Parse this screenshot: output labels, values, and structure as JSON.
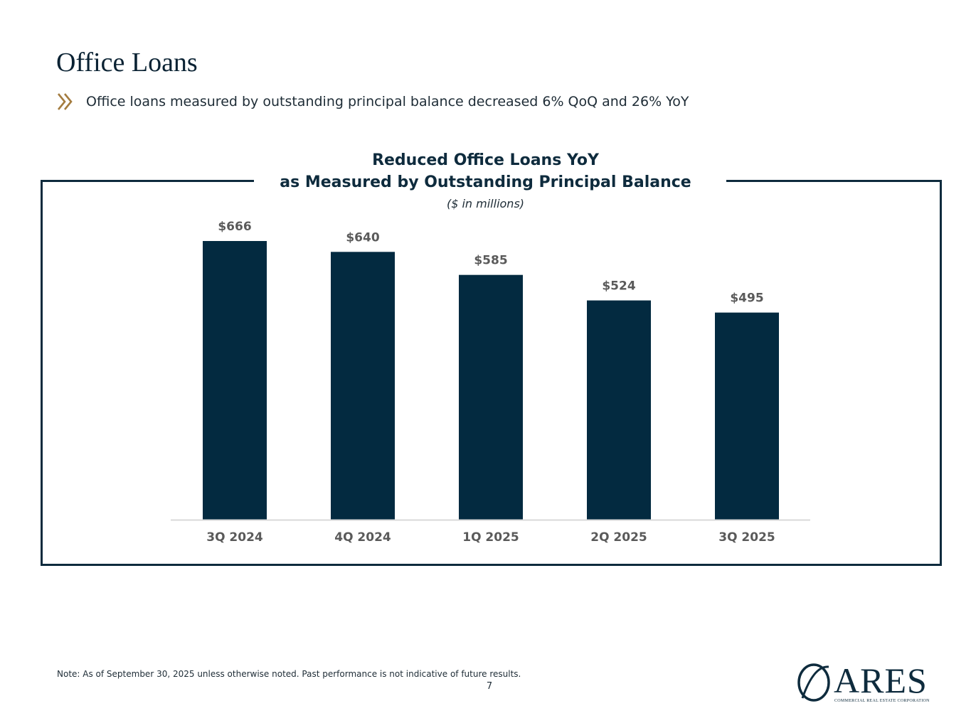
{
  "page": {
    "title": "Office Loans",
    "bullet": "Office loans measured by outstanding principal balance decreased 6% QoQ and 26% YoY",
    "footnote": "Note: As of September 30, 2025 unless otherwise noted. Past performance is not indicative of future results.",
    "page_number": "7"
  },
  "logo": {
    "word": "ARES",
    "subtitle": "COMMERCIAL REAL ESTATE CORPORATION"
  },
  "colors": {
    "navy": "#032a40",
    "frame": "#0e2b3d",
    "accent_gold": "#a47c3f",
    "axis_label": "#5a5a5a",
    "baseline": "#d9d9d9"
  },
  "chart_data": {
    "type": "bar",
    "title_line1": "Reduced Office Loans YoY",
    "title_line2": "as Measured by Outstanding Principal Balance",
    "unit_note": "($ in millions)",
    "categories": [
      "3Q 2024",
      "4Q 2024",
      "1Q 2025",
      "2Q 2025",
      "3Q 2025"
    ],
    "values": [
      666,
      640,
      585,
      524,
      495
    ],
    "data_labels": [
      "$666",
      "$640",
      "$585",
      "$524",
      "$495"
    ],
    "ylim": [
      0,
      700
    ],
    "grid": false,
    "legend": "none"
  }
}
